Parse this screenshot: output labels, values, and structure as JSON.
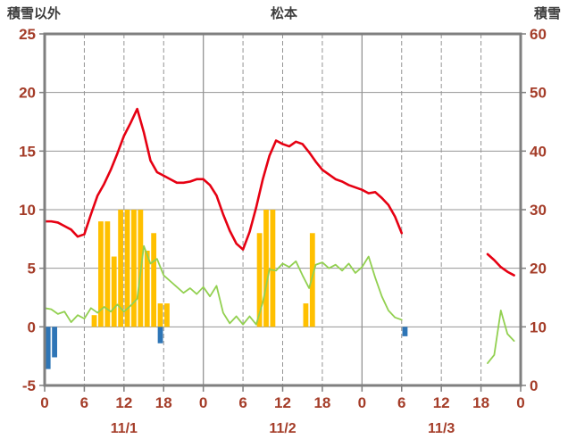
{
  "header": {
    "left_axis_title": "積雪以外",
    "station_name": "松本",
    "right_axis_title": "積雪"
  },
  "style": {
    "background": "#ffffff",
    "grid_color": "#949494",
    "border_color": "#7f7f7f",
    "axis_label_color": "#a43c28",
    "title_color": "#3d3d3d"
  },
  "chart_data": {
    "type": "mixed",
    "title": "松本",
    "left_axis": {
      "label": "積雪以外",
      "min": -5,
      "max": 25,
      "tick_step": 5,
      "ticks": [
        25,
        20,
        15,
        10,
        5,
        0,
        -5
      ]
    },
    "right_axis": {
      "label": "積雪",
      "min": 0,
      "max": 60,
      "tick_step": 10,
      "ticks": [
        60,
        50,
        40,
        30,
        20,
        10,
        0
      ]
    },
    "x_axis": {
      "unit": "hour",
      "total_hours": 72,
      "tick_step": 6,
      "tick_labels": [
        "0",
        "6",
        "12",
        "18",
        "0",
        "6",
        "12",
        "18",
        "0",
        "6",
        "12",
        "18",
        "0"
      ],
      "date_labels": [
        {
          "label": "11/1",
          "hour": 12
        },
        {
          "label": "11/2",
          "hour": 36
        },
        {
          "label": "11/3",
          "hour": 60
        }
      ]
    },
    "series": [
      {
        "name": "orange-bars",
        "type": "bar",
        "axis": "left",
        "color": "#ffc000",
        "points": [
          [
            7,
            1.0
          ],
          [
            8,
            9.0
          ],
          [
            9,
            9.0
          ],
          [
            10,
            6.0
          ],
          [
            11,
            10.0
          ],
          [
            12,
            10.0
          ],
          [
            13,
            10.0
          ],
          [
            14,
            10.0
          ],
          [
            15,
            6.5
          ],
          [
            16,
            8.0
          ],
          [
            17,
            2.0
          ],
          [
            18,
            2.0
          ],
          [
            32,
            8.0
          ],
          [
            33,
            10.0
          ],
          [
            34,
            10.0
          ],
          [
            39,
            2.0
          ],
          [
            40,
            8.0
          ]
        ]
      },
      {
        "name": "blue-bars",
        "type": "bar",
        "axis": "left",
        "color": "#2e75b6",
        "points": [
          [
            0,
            -3.6
          ],
          [
            1,
            -2.6
          ],
          [
            17,
            -1.4
          ],
          [
            54,
            -0.8
          ]
        ]
      },
      {
        "name": "purple-line",
        "type": "line",
        "axis": "right",
        "color": "#7030a0",
        "width": 3,
        "points": [
          [
            0,
            0
          ],
          [
            72,
            0
          ]
        ]
      },
      {
        "name": "green-line",
        "type": "line",
        "axis": "left",
        "color": "#92d050",
        "width": 1.8,
        "points": [
          [
            0,
            1.6
          ],
          [
            1,
            1.5
          ],
          [
            2,
            1.1
          ],
          [
            3,
            1.3
          ],
          [
            4,
            0.4
          ],
          [
            5,
            1.0
          ],
          [
            6,
            0.7
          ],
          [
            7,
            1.6
          ],
          [
            8,
            1.2
          ],
          [
            9,
            1.7
          ],
          [
            10,
            1.3
          ],
          [
            11,
            1.9
          ],
          [
            12,
            1.3
          ],
          [
            13,
            1.8
          ],
          [
            14,
            2.4
          ],
          [
            15,
            6.9
          ],
          [
            16,
            5.4
          ],
          [
            17,
            5.8
          ],
          [
            18,
            4.4
          ],
          [
            19,
            3.9
          ],
          [
            20,
            3.4
          ],
          [
            21,
            2.9
          ],
          [
            22,
            3.3
          ],
          [
            23,
            2.8
          ],
          [
            24,
            3.4
          ],
          [
            25,
            2.6
          ],
          [
            26,
            3.5
          ],
          [
            27,
            1.2
          ],
          [
            28,
            0.3
          ],
          [
            29,
            0.9
          ],
          [
            30,
            0.2
          ],
          [
            31,
            0.9
          ],
          [
            32,
            0.2
          ],
          [
            33,
            2.1
          ],
          [
            34,
            4.9
          ],
          [
            35,
            4.8
          ],
          [
            36,
            5.4
          ],
          [
            37,
            5.1
          ],
          [
            38,
            5.6
          ],
          [
            39,
            4.4
          ],
          [
            40,
            3.3
          ],
          [
            41,
            5.3
          ],
          [
            42,
            5.5
          ],
          [
            43,
            5.0
          ],
          [
            44,
            5.3
          ],
          [
            45,
            4.8
          ],
          [
            46,
            5.4
          ],
          [
            47,
            4.6
          ],
          [
            48,
            5.1
          ],
          [
            49,
            6.0
          ],
          [
            50,
            4.2
          ],
          [
            51,
            2.6
          ],
          [
            52,
            1.4
          ],
          [
            53,
            0.8
          ],
          [
            54,
            0.6
          ],
          [
            67,
            -3.1
          ],
          [
            68,
            -2.4
          ],
          [
            69,
            1.4
          ],
          [
            70,
            -0.6
          ],
          [
            71,
            -1.2
          ]
        ]
      },
      {
        "name": "red-line",
        "type": "line",
        "axis": "left",
        "color": "#e60012",
        "width": 2.6,
        "points": [
          [
            0,
            9.0
          ],
          [
            1,
            9.0
          ],
          [
            2,
            8.9
          ],
          [
            3,
            8.6
          ],
          [
            4,
            8.3
          ],
          [
            5,
            7.7
          ],
          [
            6,
            7.9
          ],
          [
            7,
            9.6
          ],
          [
            8,
            11.2
          ],
          [
            9,
            12.2
          ],
          [
            10,
            13.4
          ],
          [
            11,
            14.8
          ],
          [
            12,
            16.3
          ],
          [
            13,
            17.4
          ],
          [
            14,
            18.6
          ],
          [
            15,
            16.6
          ],
          [
            16,
            14.2
          ],
          [
            17,
            13.2
          ],
          [
            18,
            12.9
          ],
          [
            19,
            12.6
          ],
          [
            20,
            12.3
          ],
          [
            21,
            12.3
          ],
          [
            22,
            12.4
          ],
          [
            23,
            12.6
          ],
          [
            24,
            12.6
          ],
          [
            25,
            12.1
          ],
          [
            26,
            11.2
          ],
          [
            27,
            9.6
          ],
          [
            28,
            8.2
          ],
          [
            29,
            7.1
          ],
          [
            30,
            6.6
          ],
          [
            31,
            8.1
          ],
          [
            32,
            10.2
          ],
          [
            33,
            12.6
          ],
          [
            34,
            14.6
          ],
          [
            35,
            15.9
          ],
          [
            36,
            15.6
          ],
          [
            37,
            15.4
          ],
          [
            38,
            15.8
          ],
          [
            39,
            15.6
          ],
          [
            40,
            14.9
          ],
          [
            41,
            14.1
          ],
          [
            42,
            13.4
          ],
          [
            43,
            13.0
          ],
          [
            44,
            12.6
          ],
          [
            45,
            12.4
          ],
          [
            46,
            12.1
          ],
          [
            47,
            11.9
          ],
          [
            48,
            11.7
          ],
          [
            49,
            11.4
          ],
          [
            50,
            11.5
          ],
          [
            51,
            11.0
          ],
          [
            52,
            10.4
          ],
          [
            53,
            9.4
          ],
          [
            54,
            8.0
          ],
          [
            67,
            6.2
          ],
          [
            68,
            5.7
          ],
          [
            69,
            5.1
          ],
          [
            70,
            4.7
          ],
          [
            71,
            4.4
          ]
        ]
      }
    ]
  }
}
